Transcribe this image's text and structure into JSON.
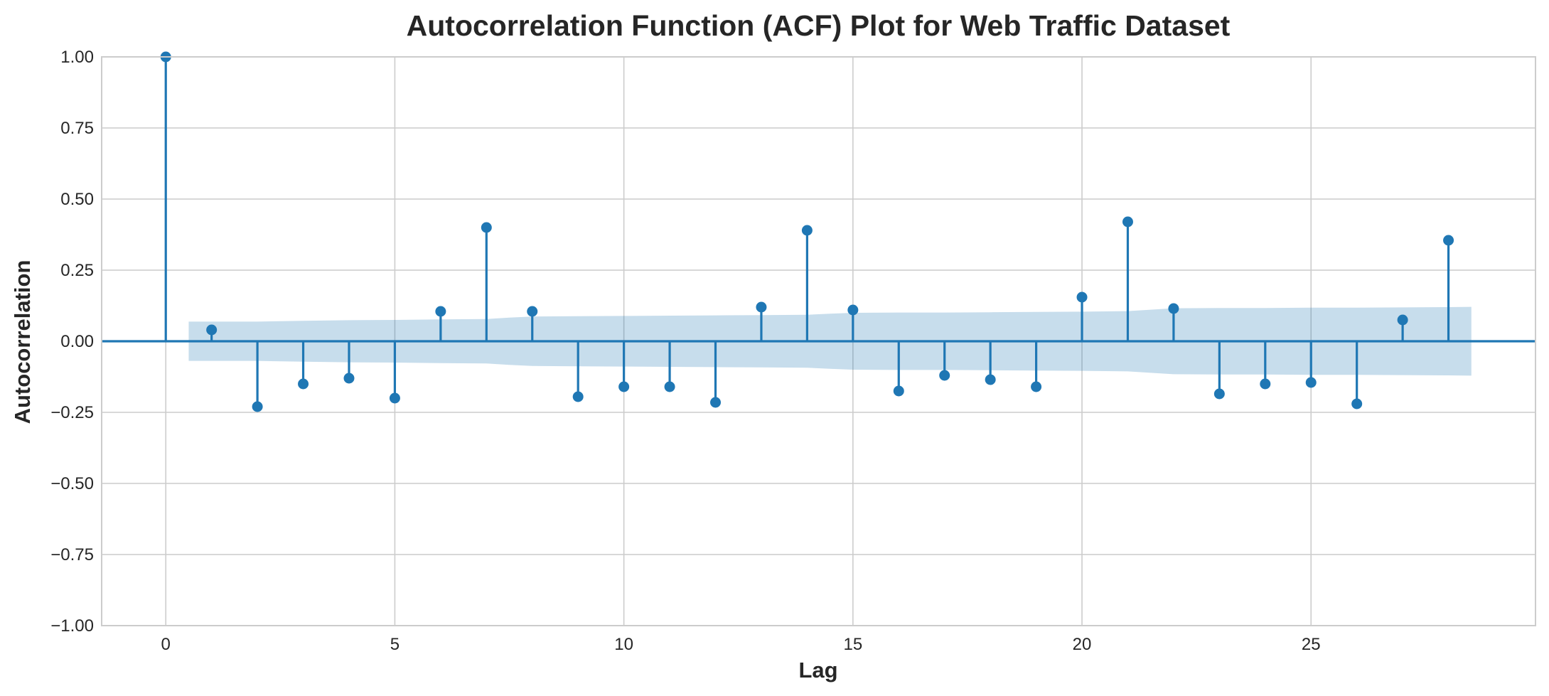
{
  "chart_data": {
    "type": "stem",
    "title": "Autocorrelation Function (ACF) Plot for Web Traffic Dataset",
    "xlabel": "Lag",
    "ylabel": "Autocorrelation",
    "xlim": [
      -1.4,
      29.9
    ],
    "ylim": [
      -1.0,
      1.0
    ],
    "xticks": [
      0,
      5,
      10,
      15,
      20,
      25
    ],
    "xtick_labels": [
      "0",
      "5",
      "10",
      "15",
      "20",
      "25"
    ],
    "yticks": [
      1.0,
      0.75,
      0.5,
      0.25,
      0.0,
      -0.25,
      -0.5,
      -0.75,
      -1.0
    ],
    "ytick_labels": [
      "1.00",
      "0.75",
      "0.50",
      "0.25",
      "0.00",
      "−0.25",
      "−0.50",
      "−0.75",
      "−1.00"
    ],
    "grid": true,
    "series": [
      {
        "color": "#1f77b4",
        "x": [
          0,
          1,
          2,
          3,
          4,
          5,
          6,
          7,
          8,
          9,
          10,
          11,
          12,
          13,
          14,
          15,
          16,
          17,
          18,
          19,
          20,
          21,
          22,
          23,
          24,
          25,
          26,
          27,
          28
        ],
        "values": [
          1.0,
          0.04,
          -0.23,
          -0.15,
          -0.13,
          -0.2,
          0.105,
          0.4,
          0.105,
          -0.195,
          -0.16,
          -0.16,
          -0.215,
          0.12,
          0.39,
          0.11,
          -0.175,
          -0.12,
          -0.135,
          -0.16,
          0.155,
          0.42,
          0.115,
          -0.185,
          -0.15,
          -0.145,
          -0.22,
          0.075,
          0.355
        ]
      }
    ],
    "confidence_band": {
      "color": "#1f77b4",
      "x": [
        0.5,
        1,
        2,
        3,
        4,
        5,
        6,
        7,
        7.5,
        8,
        9,
        10,
        11,
        12,
        13,
        14,
        14.5,
        15,
        16,
        17,
        18,
        19,
        20,
        21,
        21.5,
        22,
        23,
        24,
        25,
        26,
        27,
        28,
        28.5
      ],
      "half_width": [
        0.069,
        0.069,
        0.069,
        0.072,
        0.074,
        0.075,
        0.077,
        0.078,
        0.083,
        0.087,
        0.088,
        0.089,
        0.09,
        0.091,
        0.092,
        0.093,
        0.097,
        0.1,
        0.101,
        0.101,
        0.102,
        0.103,
        0.104,
        0.106,
        0.111,
        0.116,
        0.117,
        0.117,
        0.118,
        0.118,
        0.119,
        0.12,
        0.121
      ]
    }
  }
}
